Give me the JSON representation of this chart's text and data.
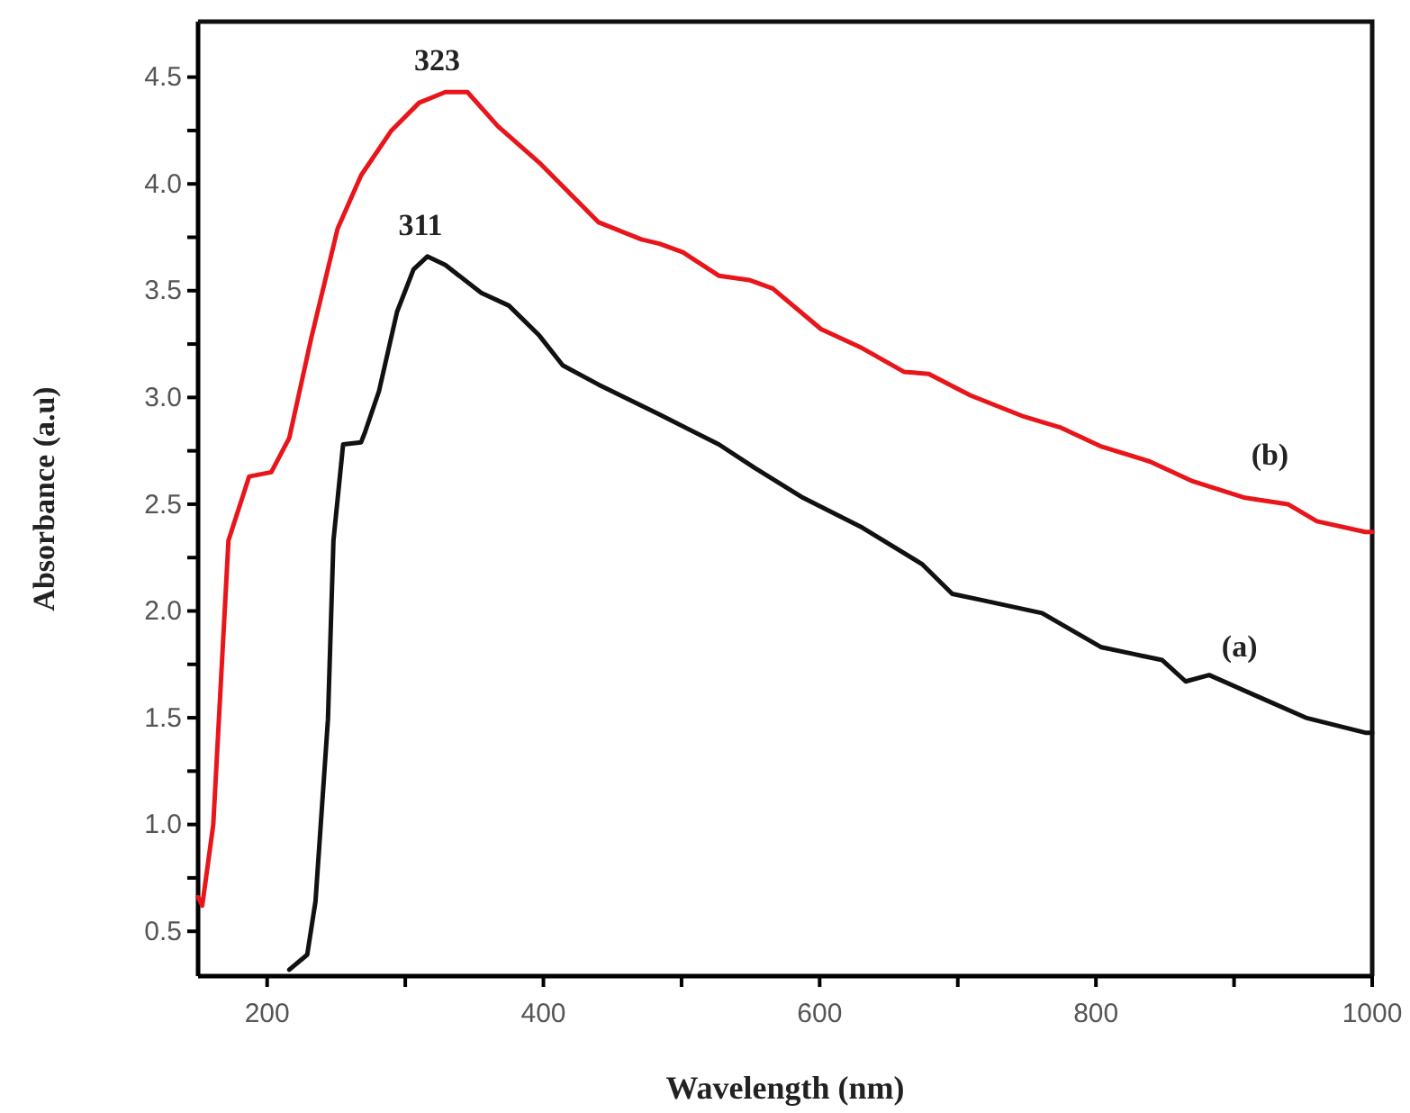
{
  "chart_data": {
    "type": "line",
    "xlabel": "Wavelength (nm)",
    "ylabel": "Absorbance (a.u)",
    "xlim": [
      150,
      1000
    ],
    "ylim": [
      0.29,
      4.76
    ],
    "xticks": [
      {
        "value": 200,
        "label": "200"
      },
      {
        "value": 300,
        "label": null
      },
      {
        "value": 400,
        "label": "400"
      },
      {
        "value": 500,
        "label": null
      },
      {
        "value": 600,
        "label": "600"
      },
      {
        "value": 700,
        "label": null
      },
      {
        "value": 800,
        "label": "800"
      },
      {
        "value": 900,
        "label": null
      },
      {
        "value": 1000,
        "label": "1000"
      }
    ],
    "yticks": [
      {
        "value": 0.5,
        "label": "0.5"
      },
      {
        "value": 0.75,
        "label": null
      },
      {
        "value": 1,
        "label": "1.0"
      },
      {
        "value": 1.25,
        "label": null
      },
      {
        "value": 1.5,
        "label": "1.5"
      },
      {
        "value": 1.75,
        "label": null
      },
      {
        "value": 2,
        "label": "2.0"
      },
      {
        "value": 2.25,
        "label": null
      },
      {
        "value": 2.5,
        "label": "2.5"
      },
      {
        "value": 2.75,
        "label": null
      },
      {
        "value": 3,
        "label": "3.0"
      },
      {
        "value": 3.25,
        "label": null
      },
      {
        "value": 3.5,
        "label": "3.5"
      },
      {
        "value": 3.75,
        "label": null
      },
      {
        "value": 4,
        "label": "4.0"
      },
      {
        "value": 4.25,
        "label": null
      },
      {
        "value": 4.5,
        "label": "4.5"
      }
    ],
    "grid": false,
    "marker": "none",
    "line_style": "solid",
    "series": [
      {
        "name": "(a)",
        "color": "#111111",
        "x": [
          216,
          229,
          235,
          244,
          248,
          255,
          268,
          271,
          281,
          294,
          306,
          316,
          329,
          355,
          375,
          397,
          414,
          440,
          484,
          527,
          553,
          588,
          631,
          674,
          696,
          718,
          761,
          804,
          826,
          848,
          865,
          882,
          917,
          952,
          995,
          1000
        ],
        "values": [
          0.32,
          0.39,
          0.64,
          1.49,
          2.33,
          2.78,
          2.79,
          2.84,
          3.03,
          3.4,
          3.6,
          3.66,
          3.62,
          3.49,
          3.43,
          3.29,
          3.15,
          3.06,
          2.92,
          2.78,
          2.67,
          2.53,
          2.39,
          2.22,
          2.08,
          2.05,
          1.99,
          1.83,
          1.8,
          1.77,
          1.67,
          1.7,
          1.6,
          1.5,
          1.43,
          1.43
        ]
      },
      {
        "name": "(b)",
        "color": "#e8161b",
        "x": [
          150,
          153,
          161,
          172,
          187,
          203,
          216,
          232,
          251,
          268,
          290,
          310,
          329,
          345,
          367,
          397,
          423,
          440,
          471,
          484,
          501,
          527,
          549,
          566,
          601,
          631,
          661,
          679,
          709,
          748,
          774,
          804,
          839,
          869,
          908,
          939,
          960,
          995,
          1000
        ],
        "values": [
          0.66,
          0.62,
          1.0,
          2.33,
          2.63,
          2.65,
          2.81,
          3.28,
          3.79,
          4.04,
          4.25,
          4.38,
          4.43,
          4.43,
          4.27,
          4.1,
          3.93,
          3.82,
          3.74,
          3.72,
          3.68,
          3.57,
          3.55,
          3.51,
          3.32,
          3.23,
          3.12,
          3.11,
          3.01,
          2.91,
          2.86,
          2.77,
          2.7,
          2.61,
          2.53,
          2.5,
          2.42,
          2.37,
          2.37
        ]
      }
    ],
    "annotations": [
      {
        "text": "311",
        "x": 311,
        "y": 3.66
      },
      {
        "text": "323",
        "x": 323,
        "y": 4.43
      }
    ]
  }
}
